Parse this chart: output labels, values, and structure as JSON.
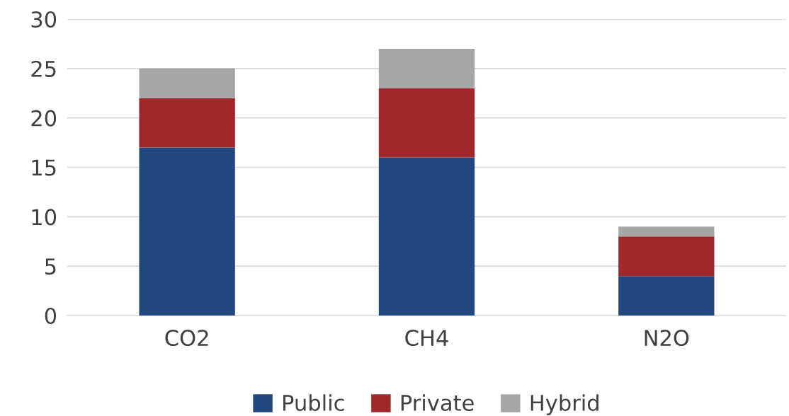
{
  "chart_data": {
    "type": "bar",
    "stacked": true,
    "categories": [
      "CO2",
      "CH4",
      "N2O"
    ],
    "series": [
      {
        "name": "Public",
        "color": "#22497f",
        "values": [
          17,
          16,
          4
        ]
      },
      {
        "name": "Private",
        "color": "#a0282b",
        "values": [
          5,
          7,
          4
        ]
      },
      {
        "name": "Hybrid",
        "color": "#a6a6a6",
        "values": [
          3,
          4,
          1
        ]
      }
    ],
    "ylim": [
      0,
      30
    ],
    "yticks": [
      0,
      5,
      10,
      15,
      20,
      25,
      30
    ],
    "grid": "y",
    "legend": "bottom"
  }
}
